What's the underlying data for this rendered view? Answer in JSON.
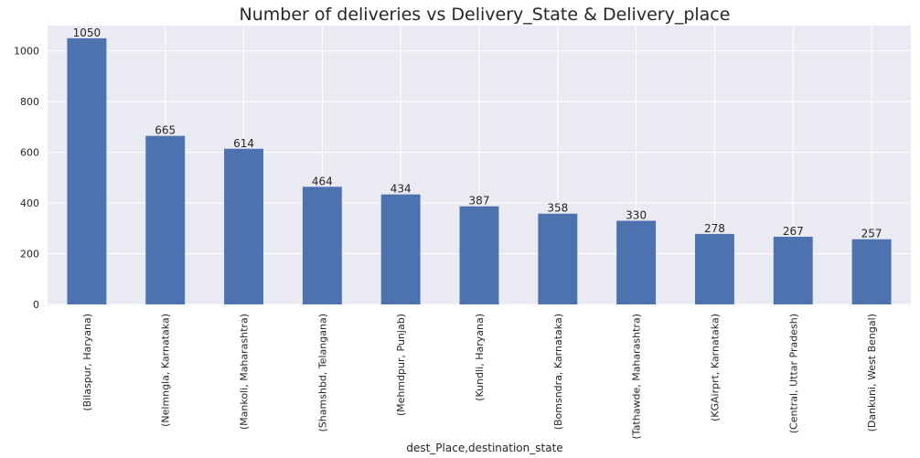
{
  "chart_data": {
    "type": "bar",
    "title": "Number of deliveries vs Delivery_State & Delivery_place",
    "xlabel": "dest_Place,destination_state",
    "ylabel": "",
    "ylim": [
      0,
      1100
    ],
    "yticks": [
      0,
      200,
      400,
      600,
      800,
      1000
    ],
    "grid": true,
    "bar_color": "#4c72b0",
    "background_color": "#eaeaf2",
    "categories": [
      "(Bilaspur, Haryana)",
      "(Nelmngla, Karnataka)",
      "(Mankoli, Maharashtra)",
      "(Shamshbd, Telangana)",
      "(Mehmdpur, Punjab)",
      "(Kundli, Haryana)",
      "(Bomsndra, Karnataka)",
      "(Tathawde, Maharashtra)",
      "(KGAirprt, Karnataka)",
      "(Central, Uttar Pradesh)",
      "(Dankuni, West Bengal)"
    ],
    "values": [
      1050,
      665,
      614,
      464,
      434,
      387,
      358,
      330,
      278,
      267,
      257
    ]
  }
}
